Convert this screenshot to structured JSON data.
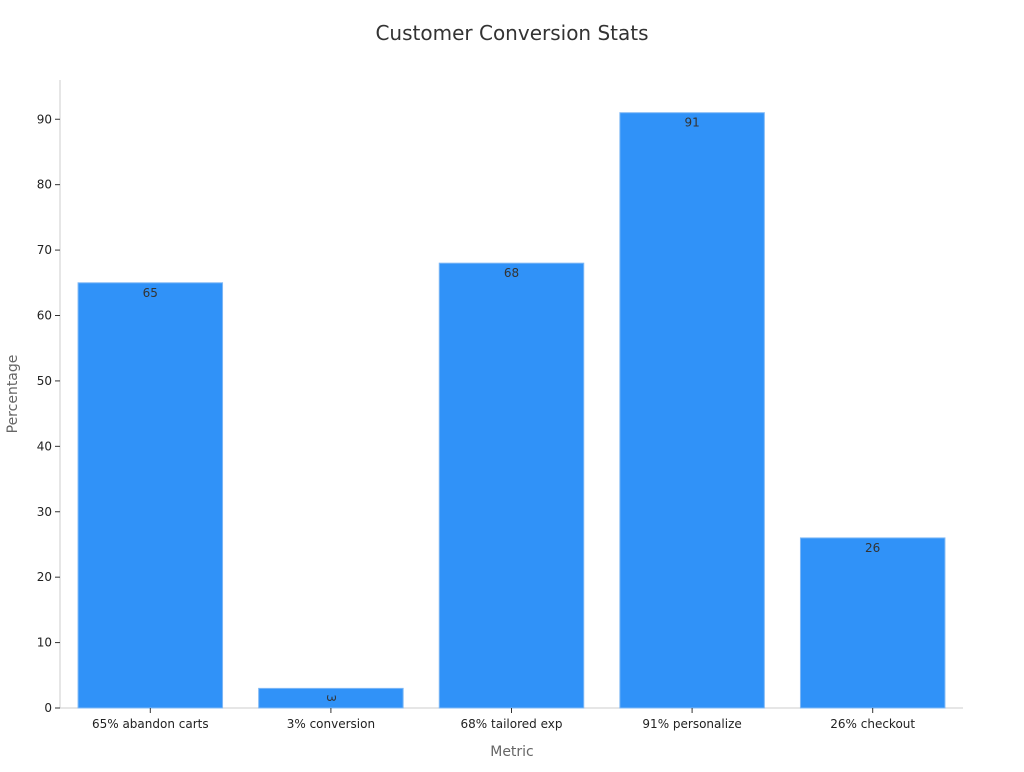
{
  "chart_data": {
    "type": "bar",
    "title": "Customer Conversion Stats",
    "xlabel": "Metric",
    "ylabel": "Percentage",
    "categories": [
      "65% abandon carts",
      "3% conversion",
      "68% tailored exp",
      "91% personalize",
      "26% checkout"
    ],
    "values": [
      65,
      3,
      68,
      91,
      26
    ],
    "ylim": [
      0,
      96
    ],
    "yticks": [
      0,
      10,
      20,
      30,
      40,
      50,
      60,
      70,
      80,
      90
    ],
    "grid": false,
    "legend": "none",
    "colors": {
      "bar_fill": "#3092f8",
      "bar_stroke": "#7fb8f5"
    }
  }
}
